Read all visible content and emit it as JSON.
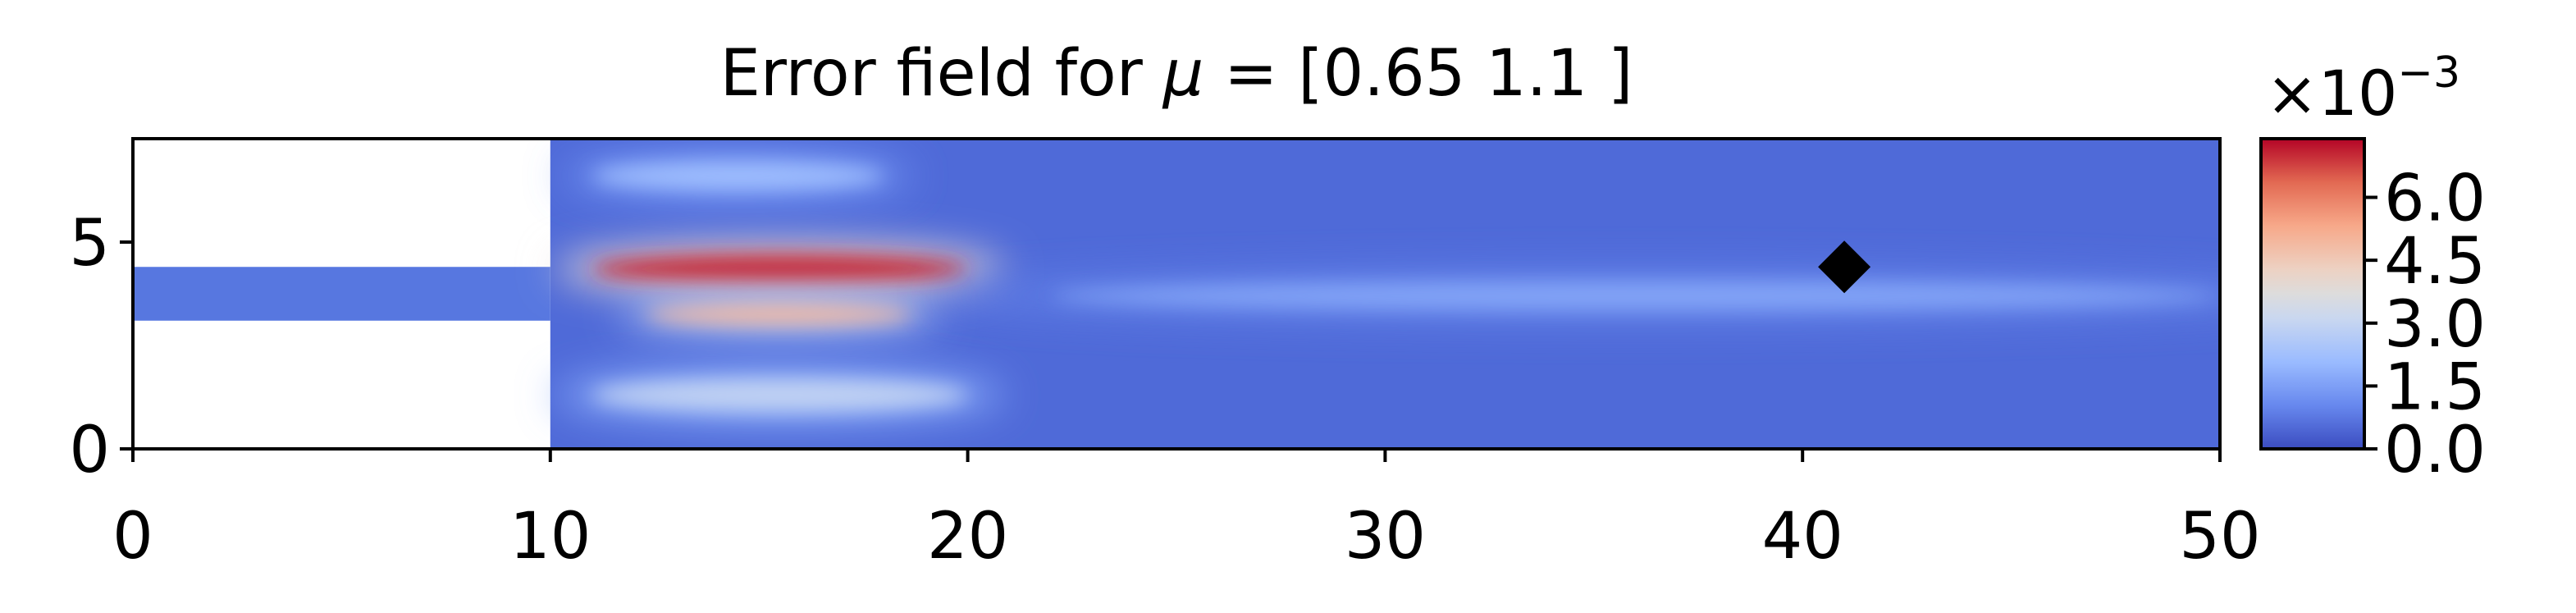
{
  "chart_data": {
    "type": "heatmap",
    "title_prefix": "Error field for ",
    "title_symbol": "μ",
    "title_suffix": " = [0.65 1.1 ]",
    "xlabel": "",
    "ylabel": "",
    "xlim": [
      0,
      50
    ],
    "ylim": [
      0,
      7.5
    ],
    "x_ticks": [
      0,
      10,
      20,
      30,
      40,
      50
    ],
    "x_tick_labels": [
      "0",
      "10",
      "20",
      "30",
      "40",
      "50"
    ],
    "y_ticks": [
      0,
      5
    ],
    "y_tick_labels": [
      "0",
      "5"
    ],
    "domain": {
      "inlet_channel": {
        "x": [
          0,
          10
        ],
        "y": [
          3.1,
          4.4
        ]
      },
      "main_chamber": {
        "x": [
          10,
          50
        ],
        "y": [
          0,
          7.5
        ]
      }
    },
    "error_hotspots": [
      {
        "x": 15.5,
        "y": 4.35,
        "rx": 4.5,
        "ry": 0.35,
        "level": 0.95
      },
      {
        "x": 15.5,
        "y": 3.25,
        "rx": 3.2,
        "ry": 0.25,
        "level": 0.65
      },
      {
        "x": 15.5,
        "y": 1.3,
        "rx": 4.5,
        "ry": 0.4,
        "level": 0.4
      },
      {
        "x": 14.5,
        "y": 6.6,
        "rx": 3.5,
        "ry": 0.35,
        "level": 0.3
      },
      {
        "x": 36.0,
        "y": 3.7,
        "rx": 14.0,
        "ry": 0.35,
        "level": 0.22
      }
    ],
    "marker": {
      "x": 41,
      "y": 4.4,
      "shape": "diamond",
      "color": "#000000"
    },
    "colorbar": {
      "colormap": "coolwarm",
      "range": [
        0.0,
        0.0074
      ],
      "ticks": [
        0.0,
        1.5,
        3.0,
        4.5,
        6.0
      ],
      "tick_labels": [
        "0.0",
        "1.5",
        "3.0",
        "4.5",
        "6.0"
      ],
      "scale_label_base": "×10",
      "scale_label_exp": "−3",
      "colors": [
        "#3b4cc0",
        "#6788ee",
        "#9abbff",
        "#c9d7f0",
        "#edd1c2",
        "#f7a889",
        "#e26952",
        "#b40426"
      ]
    }
  }
}
